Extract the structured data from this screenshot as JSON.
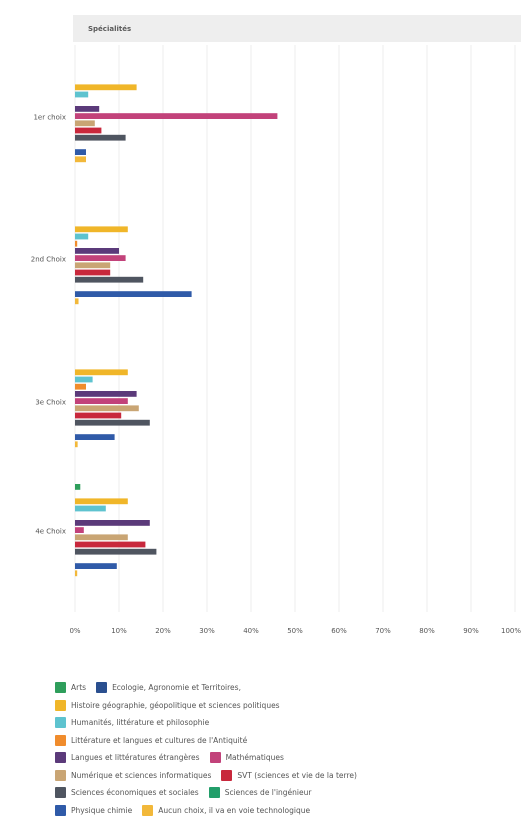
{
  "chart_data": {
    "type": "bar",
    "orientation": "horizontal",
    "facet_title": "Spécialités",
    "categories": [
      "1er choix",
      "2nd Choix",
      "3e Choix",
      "4e Choix"
    ],
    "x_ticks": [
      "0%",
      "10%",
      "20%",
      "30%",
      "40%",
      "50%",
      "60%",
      "70%",
      "80%",
      "90%",
      "100%"
    ],
    "xlim": [
      0,
      100
    ],
    "grid": true,
    "legend_position": "bottom",
    "series": [
      {
        "name": "Arts",
        "color": "#2e9e5b",
        "values": [
          0,
          0,
          0,
          1.2
        ]
      },
      {
        "name": "Ecologie, Agronomie et Territoires,",
        "color": "#2a4f8f",
        "values": [
          0,
          0,
          0,
          0
        ]
      },
      {
        "name": "Histoire géographie, géopolitique et sciences politiques",
        "color": "#f0b629",
        "values": [
          14,
          12,
          12,
          12
        ]
      },
      {
        "name": "Humanités, littérature et philosophie",
        "color": "#5ec3cf",
        "values": [
          3,
          3,
          4,
          7
        ]
      },
      {
        "name": "Littérature et langues et cultures de l'Antiquité",
        "color": "#f08c2c",
        "values": [
          0,
          0.5,
          2.5,
          0
        ]
      },
      {
        "name": "Langues et littératures étrangères",
        "color": "#5b3a7a",
        "values": [
          5.5,
          10,
          14,
          17
        ]
      },
      {
        "name": "Mathématiques",
        "color": "#c2427a",
        "values": [
          46,
          11.5,
          12,
          2
        ]
      },
      {
        "name": "Numérique et sciences informatiques",
        "color": "#c9a574",
        "values": [
          4.5,
          8,
          14.5,
          12
        ]
      },
      {
        "name": "SVT (sciences et vie de la terre)",
        "color": "#c8283c",
        "values": [
          6,
          8,
          10.5,
          16
        ]
      },
      {
        "name": "Sciences économiques et sociales",
        "color": "#4f5560",
        "values": [
          11.5,
          15.5,
          17,
          18.5
        ]
      },
      {
        "name": "Sciences de l'ingénieur",
        "color": "#229e6a",
        "values": [
          0,
          0,
          0,
          0
        ]
      },
      {
        "name": "Physique chimie",
        "color": "#2f5aa8",
        "values": [
          2.5,
          26.5,
          9,
          9.5
        ]
      },
      {
        "name": "Aucun choix, il va en voie technologique",
        "color": "#f2b83a",
        "values": [
          2.5,
          0.8,
          0.6,
          0.5
        ]
      }
    ]
  },
  "legend_rows": [
    [
      0,
      1
    ],
    [
      2
    ],
    [
      3
    ],
    [
      4
    ],
    [
      5,
      6
    ],
    [
      7,
      8
    ],
    [
      9,
      10
    ],
    [
      11,
      12
    ]
  ]
}
